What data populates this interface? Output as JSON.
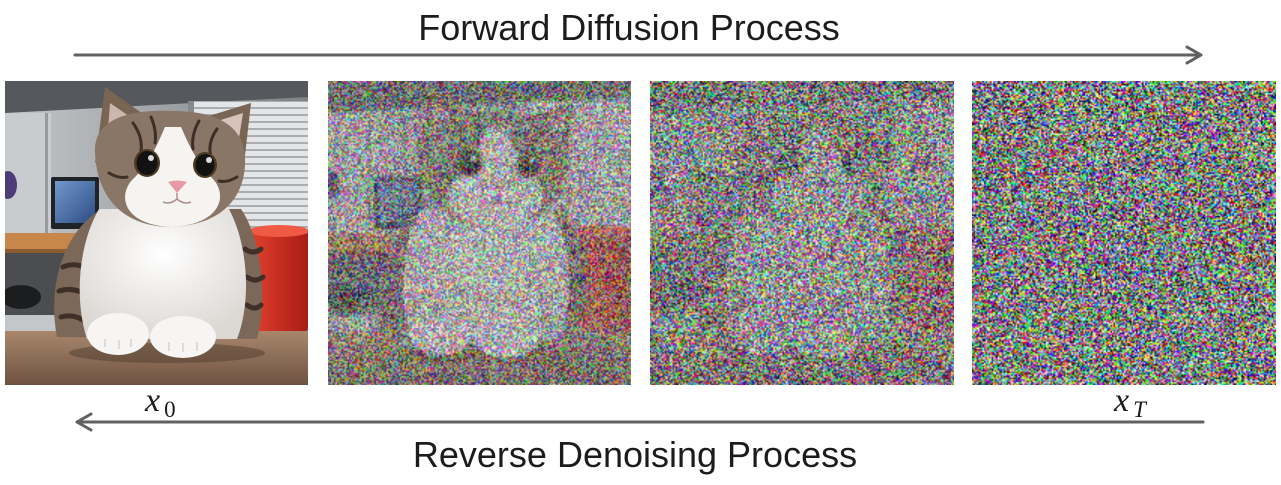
{
  "forward": {
    "label": "Forward Diffusion Process"
  },
  "reverse": {
    "label": "Reverse Denoising Process"
  },
  "labels": {
    "x0": {
      "base": "x",
      "sub": "0"
    },
    "xT": {
      "base": "x",
      "sub": "T"
    }
  },
  "colors": {
    "arrow": "#616161",
    "text": "#1c1c1c",
    "background": "#ffffff"
  }
}
